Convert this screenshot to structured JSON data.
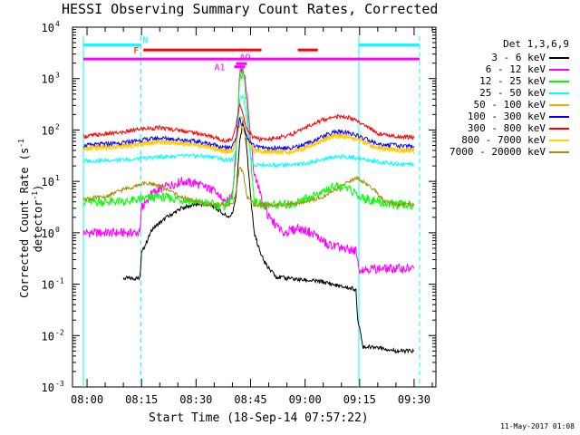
{
  "chart_data": {
    "type": "line",
    "title": "HESSI Observing Summary Count Rates, Corrected",
    "xlabel": "Start Time (18-Sep-14 07:57:22)",
    "ylabel_main": "Corrected Count Rate (s",
    "ylabel_exp1": "-1",
    "ylabel_mid": " detector",
    "ylabel_exp2": "-1",
    "ylabel_end": ")",
    "y_log": true,
    "ylim": [
      0.001,
      10000
    ],
    "xlim": [
      -4,
      96
    ],
    "x_ticks": [
      {
        "m": 0,
        "label": "08:00"
      },
      {
        "m": 15,
        "label": "08:15"
      },
      {
        "m": 30,
        "label": "08:30"
      },
      {
        "m": 45,
        "label": "08:45"
      },
      {
        "m": 60,
        "label": "09:00"
      },
      {
        "m": 75,
        "label": "09:15"
      },
      {
        "m": 90,
        "label": "09:30"
      }
    ],
    "y_ticks": [
      {
        "v": 0.001,
        "base": "10",
        "exp": "-3"
      },
      {
        "v": 0.01,
        "base": "10",
        "exp": "-2"
      },
      {
        "v": 0.1,
        "base": "10",
        "exp": "-1"
      },
      {
        "v": 1,
        "base": "10",
        "exp": "0"
      },
      {
        "v": 10,
        "base": "10",
        "exp": "1"
      },
      {
        "v": 100,
        "base": "10",
        "exp": "2"
      },
      {
        "v": 1000,
        "base": "10",
        "exp": "3"
      },
      {
        "v": 10000,
        "base": "10",
        "exp": "4"
      }
    ],
    "grid": false,
    "legend": {
      "title": "Det 1,3,6,9",
      "placement": "right"
    },
    "series": [
      {
        "name": "3 - 6 keV",
        "color": "#000000",
        "x": [
          -3,
          10,
          14.5,
          15,
          18,
          22,
          26,
          30,
          34,
          37,
          39,
          40,
          41,
          42,
          43,
          44,
          45,
          46,
          48,
          50,
          52,
          55,
          60,
          65,
          70,
          74,
          74.5,
          76,
          80,
          85,
          90
        ],
        "y": [
          null,
          0.13,
          0.13,
          0.4,
          1.2,
          2.0,
          3.0,
          3.6,
          3.5,
          2.5,
          2.0,
          2.3,
          5,
          60,
          150,
          40,
          5,
          1.0,
          0.35,
          0.2,
          0.14,
          0.13,
          0.12,
          0.11,
          0.09,
          0.08,
          0.02,
          0.006,
          0.006,
          0.005,
          0.005
        ]
      },
      {
        "name": "6 - 12 keV",
        "color": "#ff00ff",
        "x": [
          -1,
          14.5,
          15,
          18,
          22,
          26,
          30,
          34,
          37,
          39,
          40,
          41,
          42,
          43,
          44,
          45,
          46,
          48,
          50,
          54,
          58,
          62,
          66,
          70,
          74,
          75,
          80,
          85,
          90
        ],
        "y": [
          1.0,
          1.0,
          3.0,
          6,
          8,
          10,
          9,
          7,
          5,
          4,
          6,
          40,
          1200,
          1500,
          500,
          60,
          15,
          5,
          2.0,
          1.0,
          1.2,
          1.0,
          0.6,
          0.5,
          0.45,
          0.2,
          0.2,
          0.2,
          0.2
        ]
      },
      {
        "name": "12 - 25 keV",
        "color": "#00ff00",
        "x": [
          -1,
          10,
          15,
          20,
          25,
          30,
          35,
          38,
          40,
          41,
          42,
          43,
          44,
          45,
          46,
          48,
          52,
          56,
          60,
          64,
          68,
          72,
          75,
          80,
          85,
          90
        ],
        "y": [
          4,
          4,
          4.5,
          5,
          4.5,
          4,
          3.5,
          3.3,
          5,
          30,
          1000,
          1300,
          300,
          30,
          4,
          3.5,
          3.5,
          3.5,
          4.5,
          6,
          8,
          7,
          5,
          4,
          3.5,
          3.5
        ]
      },
      {
        "name": "25 - 50 keV",
        "color": "#00ffff",
        "x": [
          -1,
          10,
          15,
          20,
          25,
          30,
          35,
          38,
          40,
          41,
          42,
          43,
          44,
          45,
          46,
          48,
          52,
          56,
          60,
          64,
          68,
          72,
          76,
          80,
          85,
          90
        ],
        "y": [
          25,
          26,
          28,
          30,
          31,
          31,
          30,
          26,
          26,
          40,
          400,
          450,
          150,
          30,
          20,
          21,
          21,
          21,
          22,
          26,
          30,
          30,
          27,
          24,
          22,
          21
        ]
      },
      {
        "name": "50 - 100 keV",
        "color": "#ffa500",
        "x": [
          -1,
          10,
          15,
          20,
          25,
          30,
          35,
          38,
          40,
          41,
          42,
          43,
          44,
          46,
          48,
          52,
          56,
          60,
          64,
          68,
          72,
          76,
          80,
          85,
          90
        ],
        "y": [
          45,
          50,
          55,
          60,
          57,
          52,
          45,
          38,
          40,
          60,
          180,
          150,
          70,
          40,
          38,
          38,
          38,
          45,
          60,
          80,
          75,
          60,
          45,
          42,
          40
        ]
      },
      {
        "name": "100 - 300 keV",
        "color": "#0000ff",
        "x": [
          -1,
          10,
          15,
          20,
          25,
          30,
          35,
          38,
          40,
          41,
          42,
          43,
          44,
          46,
          48,
          52,
          56,
          60,
          64,
          68,
          72,
          76,
          80,
          85,
          90
        ],
        "y": [
          50,
          57,
          64,
          70,
          66,
          60,
          52,
          45,
          48,
          70,
          160,
          120,
          70,
          48,
          45,
          45,
          45,
          52,
          70,
          92,
          88,
          70,
          53,
          50,
          48
        ]
      },
      {
        "name": "300 - 800 keV",
        "color": "#ff0000",
        "x": [
          -1,
          10,
          15,
          20,
          25,
          30,
          35,
          38,
          40,
          41,
          42,
          43,
          44,
          46,
          48,
          52,
          56,
          60,
          64,
          68,
          72,
          76,
          80,
          85,
          90
        ],
        "y": [
          75,
          90,
          105,
          110,
          100,
          88,
          72,
          62,
          65,
          120,
          300,
          200,
          100,
          70,
          65,
          70,
          80,
          110,
          150,
          185,
          175,
          130,
          85,
          75,
          72
        ]
      },
      {
        "name": "800 - 7000 keV",
        "color": "#ffd700",
        "x": [
          -1,
          10,
          15,
          20,
          25,
          30,
          35,
          38,
          40,
          41,
          42,
          43,
          44,
          46,
          48,
          52,
          56,
          60,
          64,
          68,
          72,
          76,
          80,
          85,
          90
        ],
        "y": [
          42,
          47,
          52,
          58,
          55,
          50,
          43,
          37,
          38,
          55,
          130,
          100,
          60,
          38,
          37,
          37,
          37,
          43,
          57,
          75,
          72,
          57,
          43,
          40,
          38
        ]
      },
      {
        "name": "7000 - 20000 keV",
        "color": "#a0900a",
        "x": [
          -1,
          5,
          10,
          13,
          15,
          18,
          22,
          26,
          30,
          34,
          38,
          40,
          41,
          42,
          43,
          44,
          46,
          50,
          55,
          60,
          65,
          70,
          74,
          78,
          82,
          86,
          90
        ],
        "y": [
          4.5,
          5,
          7,
          8,
          9,
          9,
          7,
          5,
          4,
          3.5,
          3.5,
          3.5,
          6,
          20,
          15,
          5,
          3.5,
          3.5,
          3.5,
          4,
          5,
          8,
          12,
          8,
          4,
          3.5,
          3.5
        ]
      }
    ],
    "flags": [
      {
        "label": "N",
        "color": "#00ffff",
        "y": 4.5,
        "segments": [
          [
            -1,
            14.8
          ],
          [
            74.8,
            91.5
          ]
        ]
      },
      {
        "label": "F",
        "color": "#ff0000",
        "y": 3.6,
        "segments": [
          [
            15.5,
            48
          ],
          [
            58,
            63.5
          ]
        ]
      },
      {
        "label": "",
        "color": "#ff00ff",
        "y": 2.4,
        "segments": [
          [
            -1,
            91.5
          ]
        ]
      },
      {
        "label": "A1",
        "color": "#ff00ff",
        "y": 1.7,
        "segments": [
          [
            40.5,
            43.5
          ]
        ]
      },
      {
        "label": "AO",
        "color": "#ff00ff",
        "y": 1.95,
        "segments": [
          [
            41,
            44
          ]
        ]
      }
    ],
    "vertical_lines": [
      {
        "x": 14.8,
        "color": "#00ffff",
        "style": "dashed"
      },
      {
        "x": 74.8,
        "color": "#00ffff",
        "style": "solid"
      },
      {
        "x": 91.5,
        "color": "#00ffff",
        "style": "dashed"
      },
      {
        "x": -1,
        "color": "#00ffff",
        "style": "solid"
      }
    ]
  },
  "timestamp": "11-May-2017 01:08"
}
